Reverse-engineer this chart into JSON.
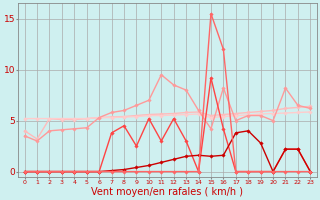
{
  "background_color": "#cff0f0",
  "grid_color": "#aaaaaa",
  "xlabel": "Vent moyen/en rafales ( km/h )",
  "xlabel_color": "#cc0000",
  "xlabel_fontsize": 7,
  "yticks": [
    0,
    5,
    10,
    15
  ],
  "xticks": [
    0,
    1,
    2,
    3,
    4,
    5,
    6,
    7,
    8,
    9,
    10,
    11,
    12,
    13,
    14,
    15,
    16,
    17,
    18,
    19,
    20,
    21,
    22,
    23
  ],
  "ylim": [
    -0.5,
    16.5
  ],
  "xlim": [
    -0.5,
    23.5
  ],
  "series": [
    {
      "x": [
        0,
        1,
        2,
        3,
        4,
        5,
        6,
        7,
        8,
        9,
        10,
        11,
        12,
        13,
        14,
        15,
        16,
        17,
        18,
        19,
        20,
        21,
        22,
        23
      ],
      "y": [
        4.0,
        3.2,
        5.2,
        5.1,
        5.1,
        5.2,
        5.3,
        5.35,
        5.4,
        5.5,
        5.6,
        5.65,
        5.7,
        5.8,
        5.85,
        5.5,
        5.6,
        5.7,
        5.8,
        5.9,
        6.0,
        6.2,
        6.3,
        6.4
      ],
      "color": "#ffbbbb",
      "linewidth": 1.0,
      "marker": "D",
      "markersize": 1.8
    },
    {
      "x": [
        0,
        1,
        2,
        3,
        4,
        5,
        6,
        7,
        8,
        9,
        10,
        11,
        12,
        13,
        14,
        15,
        16,
        17,
        18,
        19,
        20,
        21,
        22,
        23
      ],
      "y": [
        5.2,
        5.2,
        5.2,
        5.2,
        5.2,
        5.2,
        5.3,
        5.3,
        5.35,
        5.4,
        5.5,
        5.5,
        5.55,
        5.6,
        5.65,
        5.3,
        5.4,
        5.5,
        5.55,
        5.65,
        5.7,
        5.75,
        5.8,
        5.85
      ],
      "color": "#ffcccc",
      "linewidth": 1.0,
      "marker": "D",
      "markersize": 1.8
    },
    {
      "x": [
        0,
        1,
        2,
        3,
        4,
        5,
        6,
        7,
        8,
        9,
        10,
        11,
        12,
        13,
        14,
        15,
        16,
        17,
        18,
        19,
        20,
        21,
        22,
        23
      ],
      "y": [
        3.5,
        3.0,
        4.0,
        4.1,
        4.2,
        4.3,
        5.3,
        5.8,
        6.0,
        6.5,
        7.0,
        9.5,
        8.5,
        8.0,
        6.0,
        4.2,
        8.2,
        5.0,
        5.5,
        5.5,
        5.0,
        8.2,
        6.5,
        6.2
      ],
      "color": "#ff9999",
      "linewidth": 1.0,
      "marker": "D",
      "markersize": 1.8
    },
    {
      "x": [
        0,
        1,
        2,
        3,
        4,
        5,
        6,
        7,
        8,
        9,
        10,
        11,
        12,
        13,
        14,
        15,
        16,
        17,
        18,
        19,
        20,
        21,
        22,
        23
      ],
      "y": [
        0.0,
        0.0,
        0.0,
        0.0,
        0.0,
        0.0,
        0.0,
        3.8,
        4.5,
        2.5,
        5.2,
        3.0,
        5.2,
        3.0,
        0.0,
        9.2,
        4.2,
        0.0,
        0.0,
        0.0,
        0.0,
        2.2,
        2.2,
        0.0
      ],
      "color": "#ff4444",
      "linewidth": 1.0,
      "marker": "D",
      "markersize": 1.8
    },
    {
      "x": [
        0,
        1,
        2,
        3,
        4,
        5,
        6,
        7,
        8,
        9,
        10,
        11,
        12,
        13,
        14,
        15,
        16,
        17,
        18,
        19,
        20,
        21,
        22,
        23
      ],
      "y": [
        0.0,
        0.0,
        0.0,
        0.0,
        0.0,
        0.0,
        0.0,
        0.1,
        0.2,
        0.4,
        0.6,
        0.9,
        1.2,
        1.5,
        1.6,
        1.5,
        1.6,
        3.8,
        4.0,
        2.8,
        0.0,
        2.2,
        2.2,
        0.0
      ],
      "color": "#cc0000",
      "linewidth": 1.0,
      "marker": "D",
      "markersize": 1.8
    },
    {
      "x": [
        0,
        1,
        2,
        3,
        4,
        5,
        6,
        7,
        8,
        9,
        10,
        11,
        12,
        13,
        14,
        15,
        16,
        17,
        18,
        19,
        20,
        21,
        22,
        23
      ],
      "y": [
        0.0,
        0.0,
        0.0,
        0.0,
        0.0,
        0.0,
        0.0,
        0.0,
        0.0,
        0.0,
        0.0,
        0.0,
        0.0,
        0.0,
        0.0,
        15.5,
        12.0,
        0.0,
        0.0,
        0.0,
        0.0,
        0.0,
        0.0,
        0.0
      ],
      "color": "#ff6666",
      "linewidth": 1.0,
      "marker": "D",
      "markersize": 1.8
    }
  ]
}
